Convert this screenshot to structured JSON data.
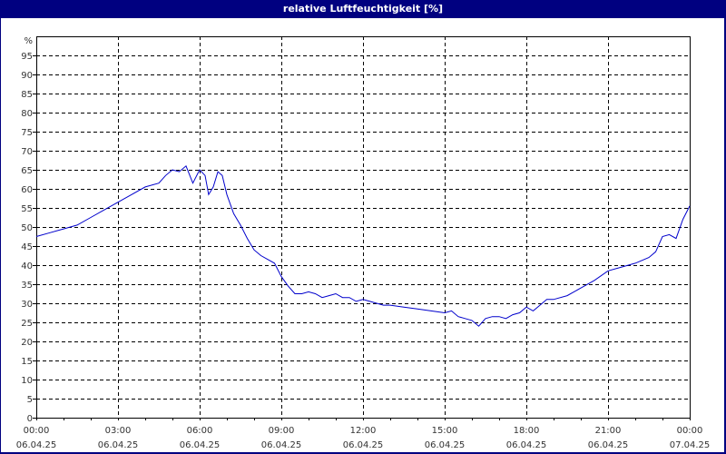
{
  "window": {
    "title": "relative Luftfeuchtigkeit [%]"
  },
  "colors": {
    "frame": "#000080",
    "background": "#ffffff",
    "line": "#0000cc",
    "grid": "#000000",
    "axis_text": "#333333"
  },
  "chart_data": {
    "type": "line",
    "title": "relative Luftfeuchtigkeit [%]",
    "xlabel": "",
    "ylabel": "%",
    "ylim": [
      0,
      100
    ],
    "y_ticks": [
      0,
      5,
      10,
      15,
      20,
      25,
      30,
      35,
      40,
      45,
      50,
      55,
      60,
      65,
      70,
      75,
      80,
      85,
      90,
      95
    ],
    "y_unit_label": "%",
    "x_ticks": [
      {
        "time": "00:00",
        "date": "06.04.25"
      },
      {
        "time": "03:00",
        "date": "06.04.25"
      },
      {
        "time": "06:00",
        "date": "06.04.25"
      },
      {
        "time": "09:00",
        "date": "06.04.25"
      },
      {
        "time": "12:00",
        "date": "06.04.25"
      },
      {
        "time": "15:00",
        "date": "06.04.25"
      },
      {
        "time": "18:00",
        "date": "06.04.25"
      },
      {
        "time": "21:00",
        "date": "06.04.25"
      },
      {
        "time": "00:00",
        "date": "07.04.25"
      }
    ],
    "grid": true,
    "legend": "none",
    "series": [
      {
        "name": "relative Luftfeuchtigkeit",
        "x_hours": [
          0,
          0.5,
          1,
          1.5,
          2,
          2.5,
          3,
          3.5,
          4,
          4.5,
          4.75,
          5,
          5.25,
          5.5,
          5.75,
          6,
          6.2,
          6.33,
          6.5,
          6.67,
          6.83,
          7,
          7.25,
          7.5,
          7.75,
          8,
          8.25,
          8.5,
          8.75,
          9,
          9.25,
          9.5,
          9.75,
          10,
          10.25,
          10.5,
          10.75,
          11,
          11.25,
          11.5,
          11.75,
          12,
          12.25,
          12.5,
          12.75,
          13,
          13.5,
          14,
          14.5,
          15,
          15.25,
          15.5,
          15.75,
          16,
          16.25,
          16.5,
          16.75,
          17,
          17.25,
          17.5,
          17.75,
          18,
          18.25,
          18.5,
          18.75,
          19,
          19.5,
          20,
          20.5,
          21,
          21.5,
          22,
          22.5,
          22.75,
          23,
          23.25,
          23.5,
          23.75,
          24
        ],
        "values": [
          47.5,
          48.5,
          49.5,
          50.5,
          52.5,
          54.5,
          56.5,
          58.5,
          60.5,
          61.5,
          63.5,
          65,
          64.5,
          66,
          61.5,
          65,
          63.5,
          58.5,
          60.5,
          64.5,
          63.5,
          58.5,
          53.5,
          50.5,
          47,
          44,
          42.5,
          41.5,
          40.5,
          37,
          34.5,
          32.5,
          32.5,
          33,
          32.5,
          31.5,
          32,
          32.5,
          31.5,
          31.5,
          30.5,
          31,
          30.5,
          30,
          29.5,
          29.5,
          29,
          28.5,
          28,
          27.5,
          28,
          26.5,
          26,
          25.5,
          24,
          26,
          26.5,
          26.5,
          26,
          27,
          27.5,
          29,
          28,
          29.5,
          31,
          31,
          32,
          34,
          36,
          38.5,
          39.5,
          40.5,
          42,
          43.5,
          47.5,
          48,
          47,
          52,
          55.5
        ]
      }
    ]
  }
}
